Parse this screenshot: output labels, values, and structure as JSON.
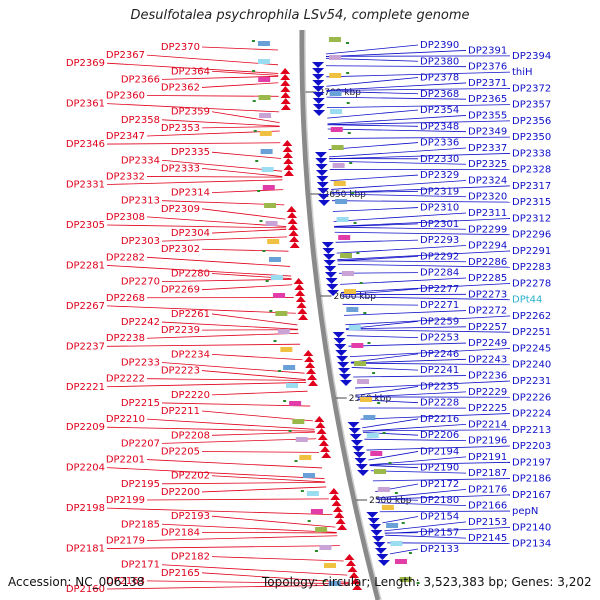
{
  "title": "Desulfotalea psychrophila LSv54, complete genome",
  "footer": {
    "accession": "Accession: NC_006138",
    "summary": "Topology: circular; Length: 3,523,383 bp; Genes: 3,202"
  },
  "colors": {
    "left_genes": "#e0001b",
    "right_genes": "#1010c8",
    "trna": "#2ab0d0",
    "backbone": "#8a8a8a",
    "green_marks": "#2a8a2a"
  },
  "kbp_marks": [
    {
      "label": "2700 kbp",
      "kbp": 2700
    },
    {
      "label": "2650 kbp",
      "kbp": 2650
    },
    {
      "label": "2600 kbp",
      "kbp": 2600
    },
    {
      "label": "2550 kbp",
      "kbp": 2550
    },
    {
      "label": "2500 kbp",
      "kbp": 2500
    }
  ],
  "left_labels": [
    "DP2370",
    "DP2367",
    "DP2369",
    "DP2364",
    "DP2366",
    "DP2362",
    "DP2360",
    "DP2361",
    "DP2359",
    "DP2358",
    "DP2353",
    "DP2347",
    "DP2346",
    "DP2335",
    "DP2334",
    "DP2333",
    "DP2332",
    "DP2331",
    "DP2314",
    "DP2313",
    "DP2309",
    "DP2308",
    "DP2305",
    "DP2304",
    "DP2303",
    "DP2302",
    "DP2282",
    "DP2281",
    "DP2280",
    "DP2270",
    "DP2269",
    "DP2268",
    "DP2267",
    "DP2261",
    "DP2242",
    "DP2239",
    "DP2238",
    "DP2237",
    "DP2234",
    "DP2233",
    "DP2223",
    "DP2222",
    "DP2221",
    "DP2220",
    "DP2215",
    "DP2211",
    "DP2210",
    "DP2209",
    "DP2208",
    "DP2207",
    "DP2205",
    "DP2201",
    "DP2204",
    "DP2202",
    "DP2195",
    "DP2200",
    "DP2199",
    "DP2198",
    "DP2193",
    "DP2185",
    "DP2184",
    "DP2179",
    "DP2181",
    "DP2182",
    "DP2171",
    "DP2165",
    "DP2163",
    "DP2160"
  ],
  "right_labels": [
    "DP2390",
    "DP2391",
    "DP2394",
    "DP2380",
    "DP2376",
    "thiH",
    "DP2378",
    "DP2371",
    "DP2372",
    "DP2368",
    "DP2365",
    "DP2357",
    "DP2354",
    "DP2355",
    "DP2356",
    "DP2348",
    "DP2349",
    "DP2350",
    "DP2336",
    "DP2337",
    "DP2338",
    "DP2330",
    "DP2325",
    "DP2328",
    "DP2329",
    "DP2324",
    "DP2317",
    "DP2319",
    "DP2320",
    "DP2315",
    "DP2310",
    "DP2311",
    "DP2312",
    "DP2301",
    "DP2299",
    "DP2296",
    "DP2293",
    "DP2294",
    "DP2291",
    "DP2292",
    "DP2286",
    "DP2283",
    "DP2284",
    "DP2285",
    "DP2278",
    "DP2277",
    "DP2273",
    "DPt44",
    "DP2271",
    "DP2272",
    "DP2262",
    "DP2259",
    "DP2257",
    "DP2251",
    "DP2253",
    "DP2249",
    "DP2245",
    "DP2246",
    "DP2243",
    "DP2240",
    "DP2241",
    "DP2236",
    "DP2231",
    "DP2235",
    "DP2229",
    "DP2226",
    "DP2228",
    "DP2225",
    "DP2224",
    "DP2216",
    "DP2214",
    "DP2213",
    "DP2206",
    "DP2196",
    "DP2203",
    "DP2194",
    "DP2191",
    "DP2197",
    "DP2190",
    "DP2187",
    "DP2186",
    "DP2172",
    "DP2176",
    "DP2167",
    "DP2180",
    "DP2166",
    "pepN",
    "DP2154",
    "DP2153",
    "DP2140",
    "DP2157",
    "DP2145",
    "DP2134",
    "DP2133"
  ]
}
